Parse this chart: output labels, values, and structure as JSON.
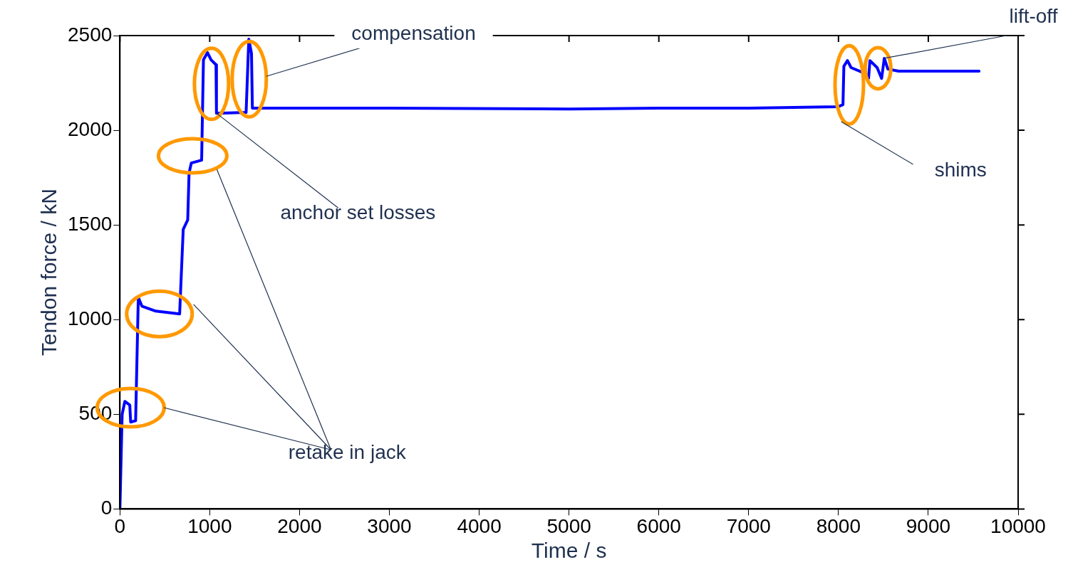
{
  "chart_data": {
    "type": "line",
    "xlabel": "Time / s",
    "ylabel": "Tendon force / kN",
    "xlim": [
      0,
      10000
    ],
    "xticks": [
      0,
      1000,
      2000,
      3000,
      4000,
      5000,
      6000,
      7000,
      8000,
      9000,
      10000
    ],
    "ylim": [
      0,
      2500
    ],
    "yticks": [
      0,
      500,
      1000,
      1500,
      2000,
      2500
    ],
    "grid": false,
    "legend": false,
    "marker": "none",
    "line_style": "solid",
    "series": [
      {
        "color": "#0000ff",
        "x": [
          0,
          25,
          55,
          110,
          120,
          175,
          205,
          245,
          400,
          665,
          705,
          755,
          770,
          795,
          910,
          930,
          975,
          1015,
          1070,
          1075,
          1405,
          1435,
          1465,
          1475,
          3000,
          5000,
          6000,
          7000,
          7993,
          8050,
          8060,
          8100,
          8140,
          8270,
          8335,
          8350,
          8430,
          8480,
          8510,
          8550,
          8670,
          9565
        ],
        "values": [
          0,
          500,
          568,
          549,
          459,
          466,
          1117,
          1071,
          1045,
          1030,
          1477,
          1526,
          1774,
          1827,
          1842,
          2372,
          2410,
          2372,
          2346,
          2090,
          2094,
          2481,
          2406,
          2117,
          2117,
          2112,
          2117,
          2117,
          2124,
          2135,
          2338,
          2368,
          2331,
          2305,
          2274,
          2368,
          2331,
          2274,
          2380,
          2323,
          2312,
          2312
        ]
      }
    ],
    "annotations": [
      "retake in jack",
      {
        "text": "anchor set losses",
        "x": 1075,
        "y": 2090
      },
      "compensation",
      "shims",
      {
        "text": "lift-off",
        "x": 8510,
        "y": 2380
      }
    ]
  }
}
